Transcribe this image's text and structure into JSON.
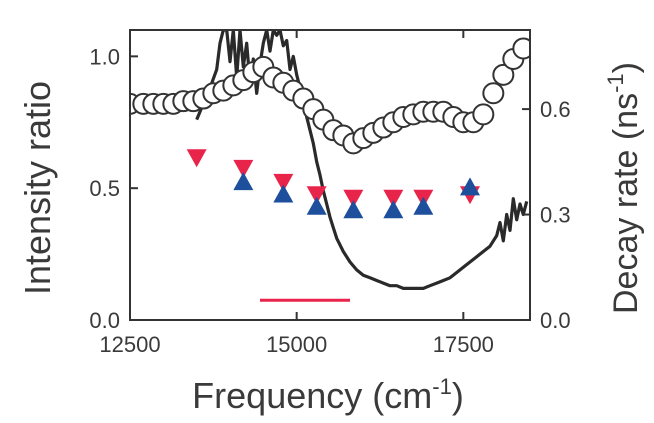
{
  "chart_data": {
    "type": "scatter",
    "xlabel": "Frequency",
    "xlabel_unit": "cm",
    "xlabel_unit_sup": "-1",
    "xlabel_close": ")",
    "ylabel_left": "Intensity ratio",
    "ylabel_right": "Decay rate",
    "ylabel_right_unit": "ns",
    "ylabel_right_unit_sup": "-1",
    "ylabel_right_close": ")",
    "xlim": [
      12500,
      18500
    ],
    "ylim_left": [
      0,
      1.1
    ],
    "ylim_right": [
      0,
      0.825
    ],
    "x_ticks": [
      12500,
      15000,
      17500
    ],
    "x_tick_labels": [
      "12500",
      "15000",
      "17500"
    ],
    "y_left_ticks": [
      0.0,
      0.5,
      1.0
    ],
    "y_left_tick_labels": [
      "0.0",
      "0.5",
      "1.0"
    ],
    "y_right_ticks": [
      0.0,
      0.3,
      0.6
    ],
    "y_right_tick_labels": [
      "0.0",
      "0.3",
      "0.6"
    ],
    "colors": {
      "spectrum": "#2a2a2a",
      "down_triangle": "#e8244a",
      "up_triangle": "#1e4f9c",
      "bar": "#e8244a",
      "circle": "#333333"
    },
    "series": [
      {
        "kind": "line",
        "axis": "left",
        "x": [
          13500,
          13600,
          13700,
          13800,
          13850,
          13900,
          13950,
          14000,
          14050,
          14100,
          14150,
          14200,
          14250,
          14300,
          14350,
          14400,
          14450,
          14500,
          14550,
          14600,
          14650,
          14700,
          14750,
          14800,
          14850,
          14900,
          14950,
          15000,
          15050,
          15100,
          15150,
          15200,
          15250,
          15300,
          15350,
          15400,
          15450,
          15500,
          15550,
          15600,
          15700,
          15800,
          15900,
          16000,
          16100,
          16200,
          16300,
          16400,
          16500,
          16600,
          16700,
          16800,
          16900,
          17000,
          17100,
          17200,
          17300,
          17400,
          17500,
          17600,
          17700,
          17800,
          17900,
          18000,
          18050,
          18100,
          18150,
          18200,
          18250,
          18300,
          18350,
          18400,
          18450
        ],
        "y": [
          0.76,
          0.82,
          0.88,
          0.95,
          1.05,
          1.1,
          1.1,
          0.98,
          1.1,
          0.92,
          1.1,
          0.96,
          1.05,
          0.9,
          0.99,
          0.86,
          0.97,
          1.05,
          1.1,
          1.02,
          1.1,
          1.08,
          1.1,
          1.04,
          1.06,
          0.95,
          1.0,
          0.93,
          0.88,
          0.83,
          0.77,
          0.72,
          0.67,
          0.6,
          0.55,
          0.49,
          0.44,
          0.39,
          0.35,
          0.31,
          0.26,
          0.22,
          0.19,
          0.17,
          0.16,
          0.15,
          0.14,
          0.13,
          0.13,
          0.12,
          0.12,
          0.12,
          0.12,
          0.13,
          0.14,
          0.15,
          0.16,
          0.18,
          0.2,
          0.22,
          0.24,
          0.26,
          0.28,
          0.32,
          0.37,
          0.3,
          0.4,
          0.34,
          0.46,
          0.38,
          0.44,
          0.4,
          0.45
        ]
      },
      {
        "kind": "open-circle",
        "axis": "left",
        "x": [
          12500,
          12700,
          12850,
          13000,
          13150,
          13300,
          13450,
          13600,
          13750,
          13900,
          14050,
          14200,
          14350,
          14500,
          14650,
          14800,
          14950,
          15100,
          15250,
          15400,
          15550,
          15700,
          15850,
          16000,
          16150,
          16300,
          16450,
          16600,
          16750,
          16900,
          17050,
          17200,
          17350,
          17500,
          17650,
          17800,
          17950,
          18100,
          18250,
          18400
        ],
        "y": [
          0.82,
          0.82,
          0.82,
          0.82,
          0.82,
          0.83,
          0.83,
          0.84,
          0.86,
          0.87,
          0.89,
          0.91,
          0.94,
          0.96,
          0.92,
          0.9,
          0.87,
          0.84,
          0.8,
          0.76,
          0.72,
          0.7,
          0.67,
          0.69,
          0.71,
          0.73,
          0.75,
          0.77,
          0.78,
          0.79,
          0.79,
          0.79,
          0.77,
          0.75,
          0.75,
          0.78,
          0.86,
          0.93,
          0.99,
          1.03
        ]
      },
      {
        "kind": "down-triangle",
        "axis": "right",
        "x": [
          13500,
          14200,
          14800,
          15300,
          15850,
          16450,
          16900,
          17600
        ],
        "y": [
          0.46,
          0.43,
          0.39,
          0.355,
          0.345,
          0.345,
          0.345,
          0.355
        ]
      },
      {
        "kind": "up-triangle",
        "axis": "right",
        "x": [
          14200,
          14800,
          15300,
          15850,
          16450,
          16900,
          17600
        ],
        "y": [
          0.395,
          0.36,
          0.325,
          0.315,
          0.315,
          0.325,
          0.38
        ]
      },
      {
        "kind": "bar-segment",
        "axis": "left",
        "x": [
          14450,
          15800
        ],
        "y": [
          0.075,
          0.075
        ]
      }
    ]
  }
}
